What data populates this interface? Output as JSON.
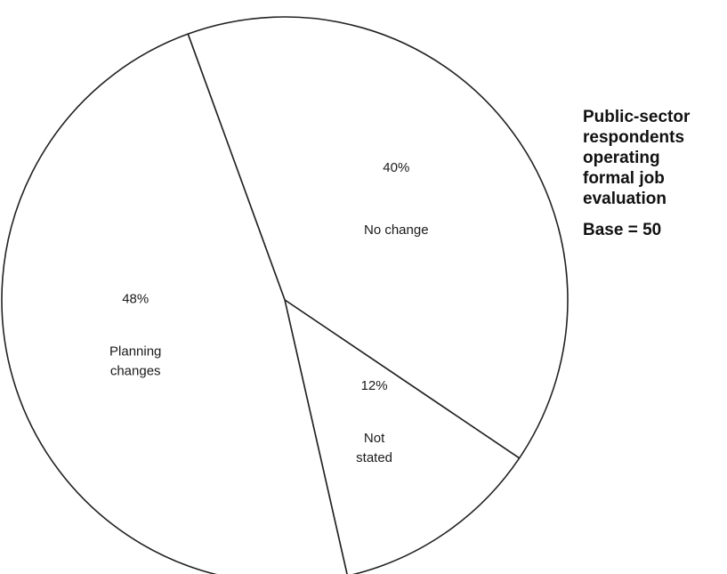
{
  "chart_data": {
    "type": "pie",
    "title": "Public-sector respondents operating formal job evaluation",
    "title_lines": [
      "Public-sector",
      "respondents",
      "operating",
      "formal job",
      "evaluation"
    ],
    "base_note": "Base = 50",
    "slices": [
      {
        "label_lines": [
          "No change"
        ],
        "value": 40,
        "pct_label": "40%"
      },
      {
        "label_lines": [
          "Not",
          "stated"
        ],
        "value": 12,
        "pct_label": "12%"
      },
      {
        "label_lines": [
          "Planning",
          "changes"
        ],
        "value": 48,
        "pct_label": "48%"
      }
    ],
    "fill_color": "#ffffff",
    "line_color": "#222222",
    "legend": "none"
  }
}
